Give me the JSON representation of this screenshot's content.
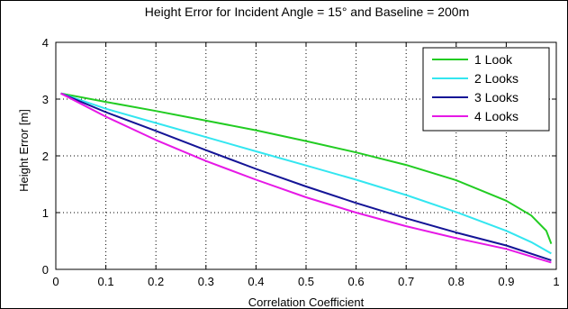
{
  "chart_data": {
    "type": "line",
    "title": "Height Error for Incident Angle = 15° and Baseline = 200m",
    "xlabel": "Correlation Coefficient",
    "ylabel": "Height Error [m]",
    "xlim": [
      0,
      1
    ],
    "ylim": [
      0,
      4
    ],
    "xticks": [
      0,
      0.1,
      0.2,
      0.3,
      0.4,
      0.5,
      0.6,
      0.7,
      0.8,
      0.9,
      1
    ],
    "xtick_labels": [
      "0",
      "0.1",
      "0.2",
      "0.3",
      "0.4",
      "0.5",
      "0.6",
      "0.7",
      "0.8",
      "0.9",
      "1"
    ],
    "yticks": [
      0,
      1,
      2,
      3,
      4
    ],
    "ytick_labels": [
      "0",
      "1",
      "2",
      "3",
      "4"
    ],
    "grid": true,
    "legend_position": "top-right",
    "series": [
      {
        "name": "1 Look",
        "color": "#22cc22",
        "x": [
          0.01,
          0.1,
          0.2,
          0.3,
          0.4,
          0.5,
          0.6,
          0.7,
          0.8,
          0.9,
          0.95,
          0.98,
          0.99
        ],
        "y": [
          3.1,
          2.95,
          2.79,
          2.62,
          2.45,
          2.26,
          2.06,
          1.84,
          1.57,
          1.21,
          0.95,
          0.68,
          0.45
        ]
      },
      {
        "name": "2 Looks",
        "color": "#33e6f0",
        "x": [
          0.01,
          0.1,
          0.2,
          0.3,
          0.4,
          0.5,
          0.6,
          0.7,
          0.8,
          0.9,
          0.95,
          0.99
        ],
        "y": [
          3.1,
          2.83,
          2.58,
          2.33,
          2.08,
          1.83,
          1.58,
          1.31,
          1.01,
          0.68,
          0.48,
          0.28
        ]
      },
      {
        "name": "3 Looks",
        "color": "#141496",
        "x": [
          0.01,
          0.1,
          0.2,
          0.3,
          0.4,
          0.5,
          0.6,
          0.7,
          0.8,
          0.9,
          0.99
        ],
        "y": [
          3.1,
          2.77,
          2.44,
          2.1,
          1.77,
          1.46,
          1.17,
          0.9,
          0.65,
          0.42,
          0.16
        ]
      },
      {
        "name": "4 Looks",
        "color": "#e619e6",
        "x": [
          0.01,
          0.1,
          0.2,
          0.3,
          0.4,
          0.5,
          0.6,
          0.7,
          0.8,
          0.9,
          0.99
        ],
        "y": [
          3.1,
          2.69,
          2.28,
          1.91,
          1.58,
          1.27,
          1.0,
          0.76,
          0.55,
          0.36,
          0.12
        ]
      }
    ]
  }
}
